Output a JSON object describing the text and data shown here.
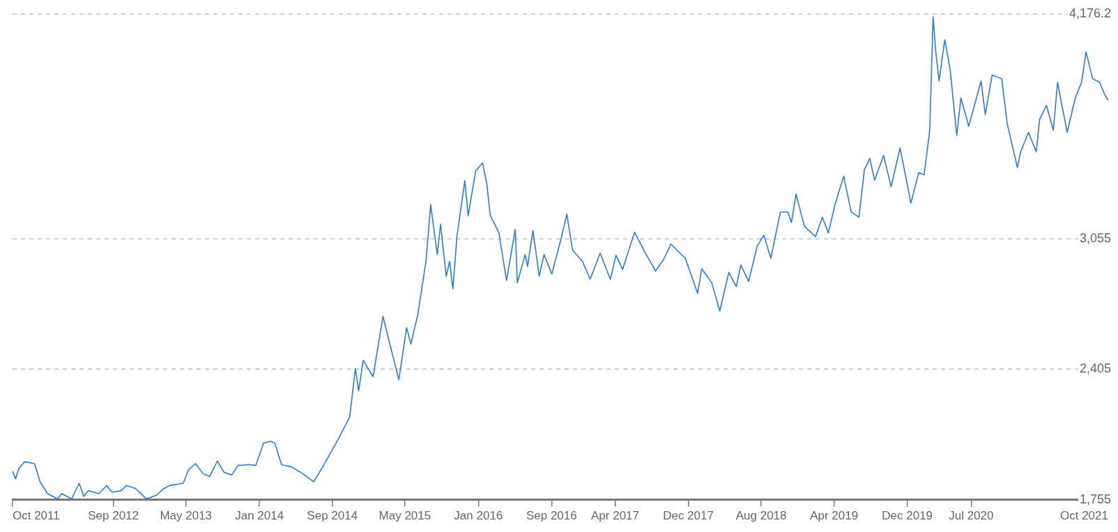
{
  "chart_data": {
    "type": "line",
    "color": "#2a7bd5",
    "marker": "none",
    "line_style": "solid",
    "grid": "y",
    "legend": false,
    "x": [
      "2011-10-01",
      "2011-10-11",
      "2011-10-22",
      "2011-11-10",
      "2011-12-13",
      "2012-01-01",
      "2012-01-26",
      "2012-02-28",
      "2012-03-13",
      "2012-04-15",
      "2012-05-10",
      "2012-05-25",
      "2012-06-09",
      "2012-07-15",
      "2012-08-10",
      "2012-08-28",
      "2012-09-27",
      "2012-10-15",
      "2012-11-14",
      "2012-12-20",
      "2013-01-22",
      "2013-02-17",
      "2013-03-09",
      "2013-04-22",
      "2013-05-10",
      "2013-06-02",
      "2013-06-27",
      "2013-07-19",
      "2013-08-14",
      "2013-09-05",
      "2013-10-01",
      "2013-10-22",
      "2013-11-25",
      "2013-12-20",
      "2014-01-15",
      "2014-02-07",
      "2014-02-21",
      "2014-03-16",
      "2014-04-19",
      "2014-05-25",
      "2014-07-01",
      "2014-08-03",
      "2014-09-23",
      "2014-10-29",
      "2014-11-17",
      "2014-11-28",
      "2014-12-13",
      "2015-01-15",
      "2015-02-17",
      "2015-03-13",
      "2015-04-11",
      "2015-05-07",
      "2015-05-21",
      "2015-06-13",
      "2015-07-11",
      "2015-07-26",
      "2015-08-17",
      "2015-08-28",
      "2015-09-16",
      "2015-09-27",
      "2015-10-08",
      "2015-10-22",
      "2015-11-17",
      "2015-11-28",
      "2015-12-23",
      "2016-01-15",
      "2016-01-29",
      "2016-02-10",
      "2016-03-09",
      "2016-04-04",
      "2016-05-03",
      "2016-05-10",
      "2016-06-05",
      "2016-06-13",
      "2016-07-01",
      "2016-07-22",
      "2016-08-07",
      "2016-09-02",
      "2016-10-04",
      "2016-10-22",
      "2016-11-10",
      "2016-12-13",
      "2017-01-08",
      "2017-02-10",
      "2017-03-16",
      "2017-04-04",
      "2017-04-26",
      "2017-06-05",
      "2017-07-08",
      "2017-08-14",
      "2017-09-09",
      "2017-10-04",
      "2017-11-21",
      "2018-01-01",
      "2018-01-15",
      "2018-02-17",
      "2018-03-16",
      "2018-04-15",
      "2018-05-10",
      "2018-05-25",
      "2018-06-20",
      "2018-07-19",
      "2018-08-10",
      "2018-09-02",
      "2018-10-04",
      "2018-10-29",
      "2018-11-10",
      "2018-11-25",
      "2018-12-23",
      "2019-01-29",
      "2019-02-21",
      "2019-03-13",
      "2019-04-04",
      "2019-05-03",
      "2019-05-28",
      "2019-06-23",
      "2019-07-11",
      "2019-07-29",
      "2019-08-14",
      "2019-09-13",
      "2019-10-08",
      "2019-11-07",
      "2019-12-13",
      "2020-01-08",
      "2020-01-26",
      "2020-02-14",
      "2020-02-25",
      "2020-03-05",
      "2020-03-16",
      "2020-04-04",
      "2020-04-22",
      "2020-05-14",
      "2020-05-28",
      "2020-06-23",
      "2020-08-03",
      "2020-08-17",
      "2020-09-09",
      "2020-10-11",
      "2020-10-29",
      "2020-12-02",
      "2020-12-13",
      "2021-01-08",
      "2021-02-03",
      "2021-02-14",
      "2021-03-09",
      "2021-04-01",
      "2021-04-15",
      "2021-05-17",
      "2021-06-13",
      "2021-07-04",
      "2021-07-19",
      "2021-08-10",
      "2021-09-02",
      "2021-09-20",
      "2021-10-01"
    ],
    "values": [
      1898,
      1859,
      1911,
      1944,
      1935,
      1844,
      1785,
      1759,
      1785,
      1759,
      1837,
      1772,
      1800,
      1785,
      1826,
      1792,
      1800,
      1826,
      1811,
      1759,
      1777,
      1811,
      1826,
      1837,
      1904,
      1935,
      1885,
      1870,
      1948,
      1892,
      1878,
      1926,
      1930,
      1926,
      2037,
      2046,
      2037,
      1930,
      1918,
      1885,
      1844,
      1926,
      2063,
      2167,
      2409,
      2297,
      2450,
      2368,
      2669,
      2524,
      2353,
      2613,
      2531,
      2676,
      2951,
      3226,
      2977,
      3129,
      2869,
      2943,
      2806,
      3073,
      3345,
      3170,
      3393,
      3434,
      3330,
      3170,
      3088,
      2847,
      3103,
      2836,
      2977,
      2918,
      3096,
      2869,
      2977,
      2880,
      3062,
      3178,
      2999,
      2943,
      2854,
      2984,
      2854,
      2973,
      2903,
      3088,
      2992,
      2895,
      2951,
      3029,
      2958,
      2784,
      2906,
      2836,
      2695,
      2888,
      2817,
      2925,
      2843,
      3021,
      3073,
      2958,
      3189,
      3189,
      3137,
      3278,
      3118,
      3066,
      3163,
      3085,
      3226,
      3367,
      3189,
      3163,
      3400,
      3456,
      3348,
      3471,
      3315,
      3508,
      3233,
      3385,
      3374,
      3597,
      4162,
      3987,
      3842,
      4047,
      3898,
      3571,
      3757,
      3616,
      3842,
      3675,
      3872,
      3853,
      3631,
      3411,
      3489,
      3586,
      3489,
      3649,
      3720,
      3597,
      3835,
      3586,
      3757,
      3835,
      3987,
      3853,
      3835,
      3772,
      3746
    ],
    "xlim": [
      "2011-10",
      "2021-10"
    ],
    "xticks": [
      {
        "value": "2011-10",
        "label": "Oct 2011"
      },
      {
        "value": "2012-09",
        "label": "Sep 2012"
      },
      {
        "value": "2013-05",
        "label": "May 2013"
      },
      {
        "value": "2014-01",
        "label": "Jan 2014"
      },
      {
        "value": "2014-09",
        "label": "Sep 2014"
      },
      {
        "value": "2015-05",
        "label": "May 2015"
      },
      {
        "value": "2016-01",
        "label": "Jan 2016"
      },
      {
        "value": "2016-09",
        "label": "Sep 2016"
      },
      {
        "value": "2017-04",
        "label": "Apr 2017"
      },
      {
        "value": "2017-12",
        "label": "Dec 2017"
      },
      {
        "value": "2018-08",
        "label": "Aug 2018"
      },
      {
        "value": "2019-04",
        "label": "Apr 2019"
      },
      {
        "value": "2019-12",
        "label": "Dec 2019"
      },
      {
        "value": "2020-07",
        "label": "Jul 2020"
      },
      {
        "value": "2021-10",
        "label": "Oct 2021"
      }
    ],
    "ylim": [
      1755,
      4176.2
    ],
    "yticks": [
      {
        "value": 1755,
        "label": "1,755"
      },
      {
        "value": 2405,
        "label": "2,405"
      },
      {
        "value": 3055,
        "label": "3,055"
      },
      {
        "value": 4176.2,
        "label": "4,176.2"
      }
    ]
  }
}
